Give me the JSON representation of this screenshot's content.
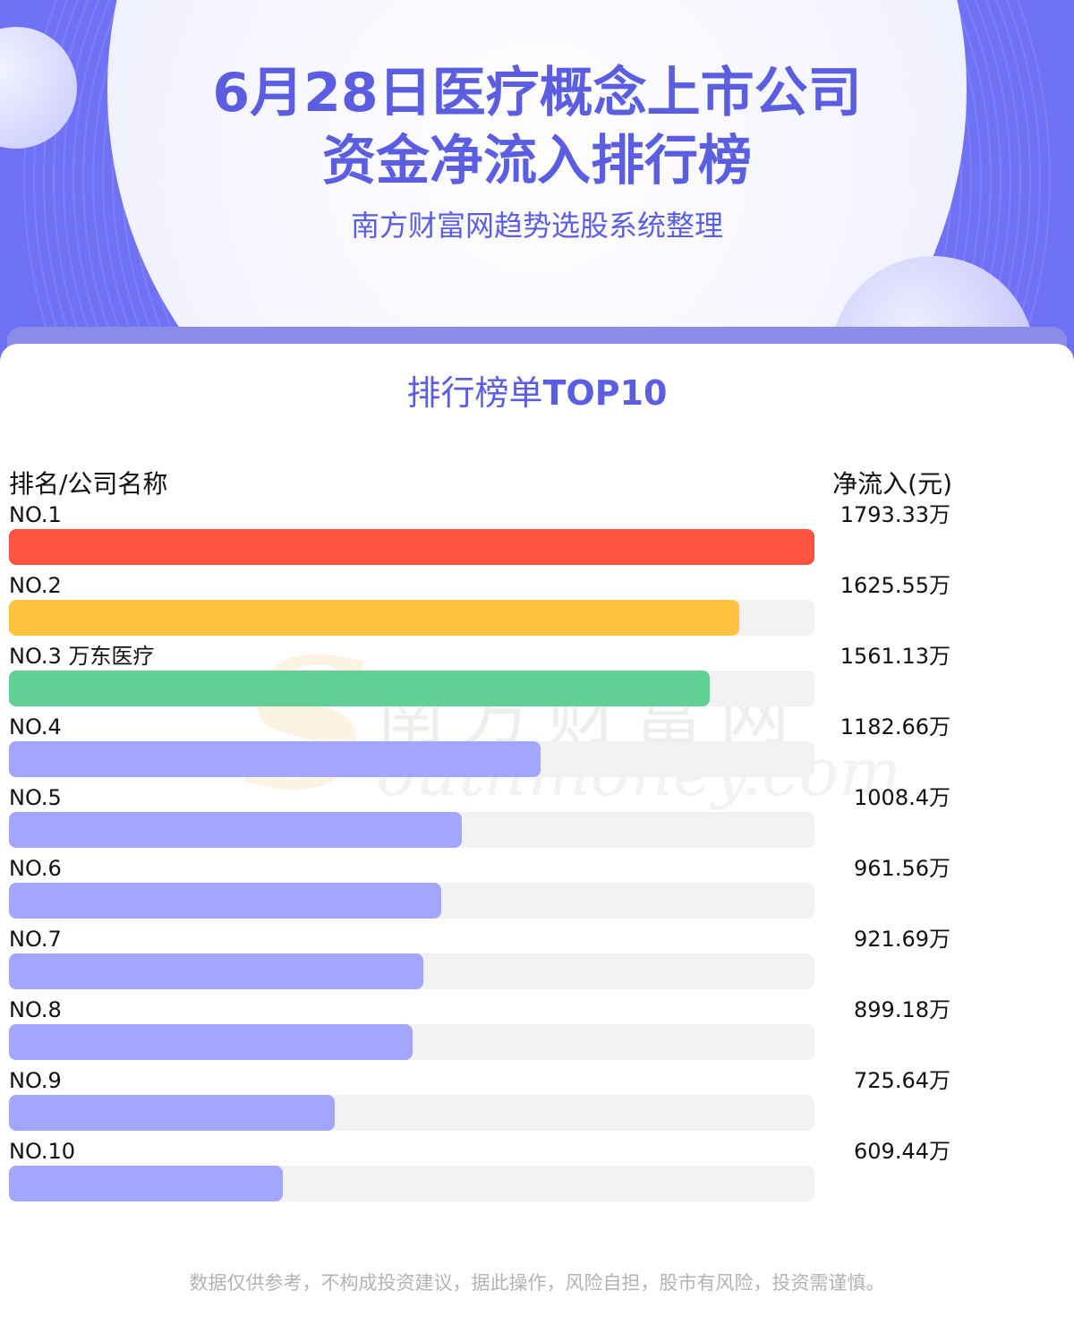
{
  "header": {
    "title_line1": "6月28日医疗概念上市公司",
    "title_line2": "资金净流入排行榜",
    "subtitle": "南方财富网趋势选股系统整理"
  },
  "card": {
    "title_cn": "排行榜单",
    "title_en": "TOP10"
  },
  "watermark": {
    "logo_letter": "S",
    "name_cn": "南方财富网",
    "name_en": "outhmoney.com"
  },
  "colors": {
    "accent": "#5b5ee0",
    "rank1": "#ff5540",
    "rank2": "#ffc340",
    "rank3": "#62cf94",
    "default_bar": "#a3a6ff",
    "track": "#f2f2f2"
  },
  "chart_data": {
    "type": "bar",
    "title": "排行榜单TOP10",
    "xlabel": "排名/公司名称",
    "ylabel": "净流入(元)",
    "categories": [
      "NO.1",
      "NO.2",
      "NO.3 万东医疗",
      "NO.4",
      "NO.5",
      "NO.6",
      "NO.7",
      "NO.8",
      "NO.9",
      "NO.10"
    ],
    "values": [
      1793.33,
      1625.55,
      1561.13,
      1182.66,
      1008.4,
      961.56,
      921.69,
      899.18,
      725.64,
      609.44
    ],
    "value_labels": [
      "1793.33万",
      "1625.55万",
      "1561.13万",
      "1182.66万",
      "1008.4万",
      "961.56万",
      "921.69万",
      "899.18万",
      "725.64万",
      "609.44万"
    ],
    "unit": "万",
    "xlim": [
      0,
      1793.33
    ]
  },
  "footer": {
    "disclaimer": "数据仅供参考，不构成投资建议，据此操作，风险自担，股市有风险，投资需谨慎。"
  }
}
